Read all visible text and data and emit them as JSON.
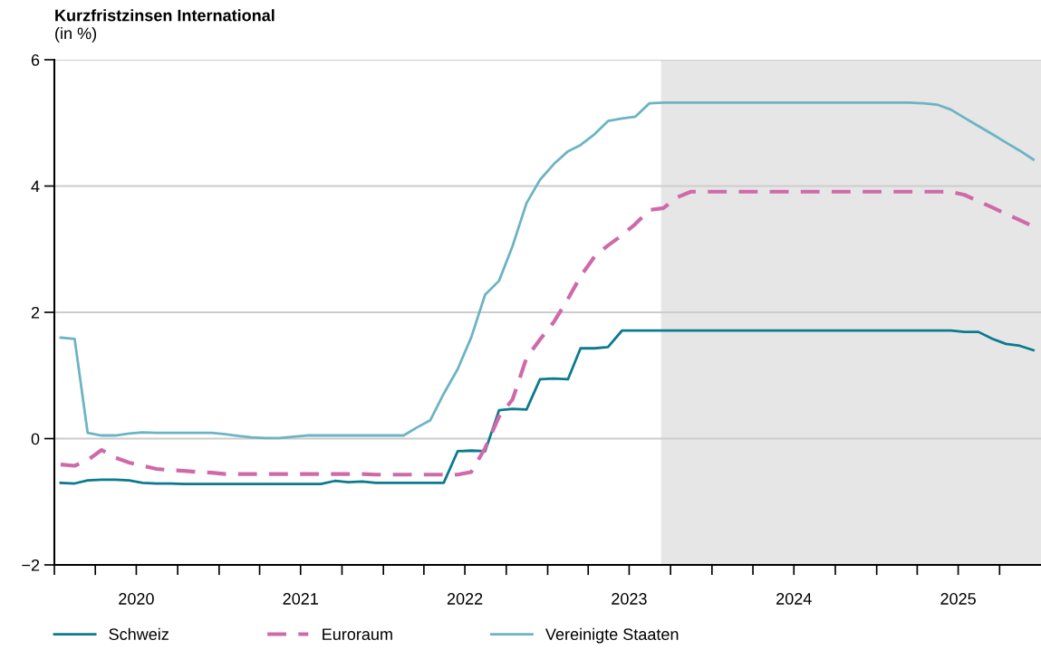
{
  "chart_data": {
    "type": "line",
    "title": "Kurzfristzinsen International",
    "subtitle": "(in %)",
    "x": [
      "2020-01-15",
      "2020-02-15",
      "2020-03-15",
      "2020-04-15",
      "2020-05-15",
      "2020-06-15",
      "2020-07-15",
      "2020-08-15",
      "2020-09-15",
      "2020-10-15",
      "2020-11-15",
      "2020-12-15",
      "2021-01-15",
      "2021-02-15",
      "2021-03-15",
      "2021-04-15",
      "2021-05-15",
      "2021-06-15",
      "2021-07-15",
      "2021-08-15",
      "2021-09-15",
      "2021-10-15",
      "2021-11-15",
      "2021-12-15",
      "2022-01-15",
      "2022-02-15",
      "2022-03-15",
      "2022-04-15",
      "2022-05-15",
      "2022-06-15",
      "2022-07-15",
      "2022-08-15",
      "2022-09-15",
      "2022-10-15",
      "2022-11-15",
      "2022-12-15",
      "2023-01-15",
      "2023-02-15",
      "2023-03-15",
      "2023-04-15",
      "2023-05-15",
      "2023-06-15",
      "2023-07-15",
      "2023-08-15",
      "2023-09-15",
      "2023-10-15",
      "2023-11-15",
      "2023-12-15",
      "2024-01-15",
      "2024-02-15",
      "2024-03-15",
      "2024-04-15",
      "2024-05-15",
      "2024-06-15",
      "2024-07-15",
      "2024-08-15",
      "2024-09-15",
      "2024-10-15",
      "2024-11-15",
      "2024-12-15",
      "2025-01-15",
      "2025-02-15",
      "2025-03-15",
      "2025-04-15",
      "2025-05-15",
      "2025-06-15",
      "2025-07-15",
      "2025-08-15",
      "2025-09-15",
      "2025-10-15",
      "2025-11-15",
      "2025-12-15"
    ],
    "series": [
      {
        "name": "Schweiz",
        "color": "#0b7a8e",
        "line_style": "solid",
        "values": [
          -0.7,
          -0.71,
          -0.66,
          -0.65,
          -0.65,
          -0.66,
          -0.7,
          -0.71,
          -0.71,
          -0.72,
          -0.72,
          -0.72,
          -0.72,
          -0.72,
          -0.72,
          -0.72,
          -0.72,
          -0.72,
          -0.72,
          -0.72,
          -0.67,
          -0.69,
          -0.68,
          -0.7,
          -0.7,
          -0.7,
          -0.7,
          -0.7,
          -0.7,
          -0.2,
          -0.19,
          -0.2,
          0.45,
          0.47,
          0.46,
          0.94,
          0.95,
          0.94,
          1.43,
          1.43,
          1.45,
          1.71,
          1.71,
          1.71,
          1.71,
          1.71,
          1.71,
          1.71,
          1.71,
          1.71,
          1.71,
          1.71,
          1.71,
          1.71,
          1.71,
          1.71,
          1.71,
          1.71,
          1.71,
          1.71,
          1.71,
          1.71,
          1.71,
          1.71,
          1.71,
          1.71,
          1.69,
          1.69,
          1.58,
          1.5,
          1.47,
          1.4
        ]
      },
      {
        "name": "Euroraum",
        "color": "#cf6aaa",
        "line_style": "dashed",
        "values": [
          -0.41,
          -0.43,
          -0.34,
          -0.18,
          -0.3,
          -0.38,
          -0.43,
          -0.48,
          -0.5,
          -0.51,
          -0.53,
          -0.54,
          -0.56,
          -0.56,
          -0.56,
          -0.56,
          -0.56,
          -0.56,
          -0.56,
          -0.56,
          -0.56,
          -0.56,
          -0.56,
          -0.57,
          -0.57,
          -0.57,
          -0.57,
          -0.57,
          -0.57,
          -0.57,
          -0.53,
          -0.15,
          0.35,
          0.62,
          1.28,
          1.57,
          1.85,
          2.21,
          2.57,
          2.88,
          3.06,
          3.22,
          3.4,
          3.62,
          3.65,
          3.82,
          3.91,
          3.91,
          3.91,
          3.91,
          3.91,
          3.91,
          3.91,
          3.91,
          3.91,
          3.91,
          3.91,
          3.91,
          3.91,
          3.91,
          3.91,
          3.91,
          3.91,
          3.91,
          3.91,
          3.91,
          3.86,
          3.76,
          3.66,
          3.56,
          3.46,
          3.36
        ]
      },
      {
        "name": "Vereinigte Staaten",
        "color": "#6cb4c4",
        "line_style": "solid",
        "values": [
          1.6,
          1.58,
          0.09,
          0.05,
          0.05,
          0.08,
          0.1,
          0.09,
          0.09,
          0.09,
          0.09,
          0.09,
          0.07,
          0.04,
          0.02,
          0.01,
          0.01,
          0.03,
          0.05,
          0.05,
          0.05,
          0.05,
          0.05,
          0.05,
          0.05,
          0.05,
          0.17,
          0.29,
          0.71,
          1.1,
          1.6,
          2.28,
          2.5,
          3.05,
          3.73,
          4.1,
          4.35,
          4.55,
          4.65,
          4.82,
          5.03,
          5.07,
          5.1,
          5.31,
          5.32,
          5.32,
          5.32,
          5.32,
          5.32,
          5.32,
          5.32,
          5.32,
          5.32,
          5.32,
          5.32,
          5.32,
          5.32,
          5.32,
          5.32,
          5.32,
          5.32,
          5.32,
          5.32,
          5.31,
          5.29,
          5.21,
          5.08,
          4.95,
          4.82,
          4.69,
          4.56,
          4.42
        ]
      }
    ],
    "bands": [
      {
        "axis": "x",
        "from": "2023-09-10",
        "to": "2026-01-01",
        "color": "#e6e6e6"
      }
    ],
    "xlim": [
      "2020-01-01",
      "2026-01-01"
    ],
    "xticks": [
      {
        "value": "2020-01-01",
        "label": null
      },
      {
        "value": "2020-04-01",
        "label": null
      },
      {
        "value": "2020-07-01",
        "label": "2020"
      },
      {
        "value": "2020-10-01",
        "label": null
      },
      {
        "value": "2021-01-01",
        "label": null
      },
      {
        "value": "2021-04-01",
        "label": null
      },
      {
        "value": "2021-07-01",
        "label": "2021"
      },
      {
        "value": "2021-10-01",
        "label": null
      },
      {
        "value": "2022-01-01",
        "label": null
      },
      {
        "value": "2022-04-01",
        "label": null
      },
      {
        "value": "2022-07-01",
        "label": "2022"
      },
      {
        "value": "2022-10-01",
        "label": null
      },
      {
        "value": "2023-01-01",
        "label": null
      },
      {
        "value": "2023-04-01",
        "label": null
      },
      {
        "value": "2023-07-01",
        "label": "2023"
      },
      {
        "value": "2023-10-01",
        "label": null
      },
      {
        "value": "2024-01-01",
        "label": null
      },
      {
        "value": "2024-04-01",
        "label": null
      },
      {
        "value": "2024-07-01",
        "label": "2024"
      },
      {
        "value": "2024-10-01",
        "label": null
      },
      {
        "value": "2025-01-01",
        "label": null
      },
      {
        "value": "2025-04-01",
        "label": null
      },
      {
        "value": "2025-07-01",
        "label": "2025"
      },
      {
        "value": "2025-10-01",
        "label": null
      }
    ],
    "ylim": [
      -2,
      6
    ],
    "yticks": [
      {
        "value": -2,
        "label": "−2"
      },
      0,
      2,
      4,
      6
    ],
    "grid": "y",
    "legend": "bottom",
    "marker": "none"
  }
}
